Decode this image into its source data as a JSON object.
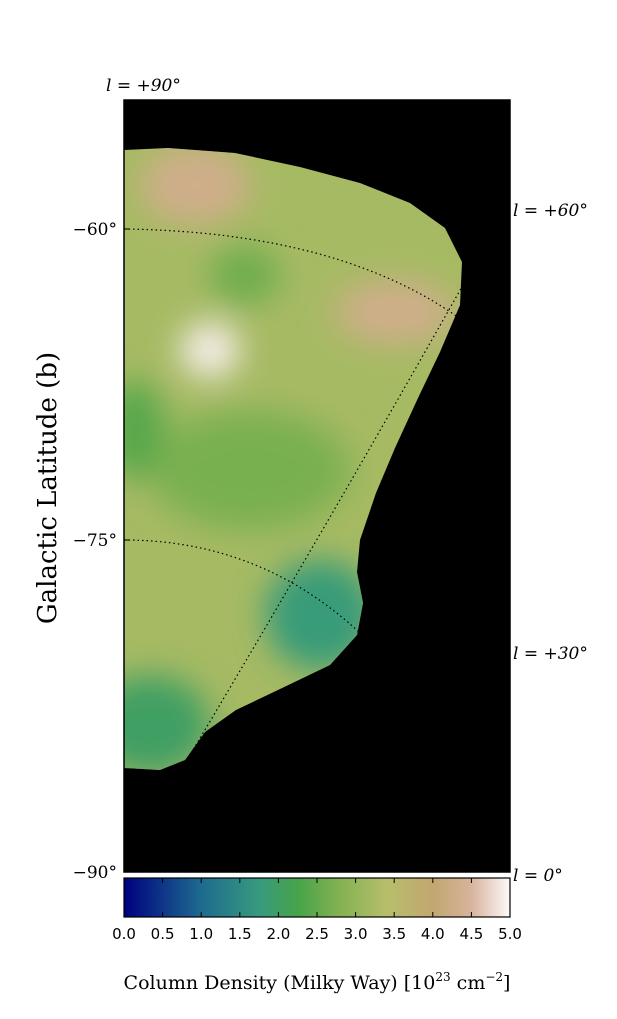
{
  "chart_data": {
    "type": "heatmap",
    "title": "",
    "ylabel": "Galactic Latitude (b)",
    "colorbar_label": "Column Density (Milky Way) [10^23 cm^-2]",
    "colorbar_label_main": "Column Density (Milky Way) [10",
    "colorbar_label_exp1": "23",
    "colorbar_label_unit": " cm",
    "colorbar_label_exp2": "−2",
    "colorbar_label_end": "]",
    "colormap": "gist_earth",
    "colorbar_range": [
      0.0,
      5.0
    ],
    "colorbar_ticks": [
      "0.0",
      "0.5",
      "1.0",
      "1.5",
      "2.0",
      "2.5",
      "3.0",
      "3.5",
      "4.0",
      "4.5",
      "5.0"
    ],
    "latitude_ticks": [
      "−60°",
      "−75°",
      "−90°"
    ],
    "latitude_values": [
      -60,
      -75,
      -90
    ],
    "longitude_labels": [
      "l = +90°",
      "l = +60°",
      "l = +30°",
      "l = 0°"
    ],
    "longitude_values": [
      90,
      60,
      30,
      0
    ],
    "background_color": "#000000",
    "blobs": [
      {
        "region": "upper-left",
        "value": 4.3
      },
      {
        "region": "upper-right",
        "value": 4.3
      },
      {
        "region": "upper-center",
        "value": 2.6
      },
      {
        "region": "peak",
        "value": 4.9
      },
      {
        "region": "left-edge",
        "value": 2.4
      },
      {
        "region": "center",
        "value": 2.7
      },
      {
        "region": "lower-right",
        "value": 1.8
      },
      {
        "region": "lower-left",
        "value": 2.0
      }
    ],
    "base_value": 3.2
  }
}
